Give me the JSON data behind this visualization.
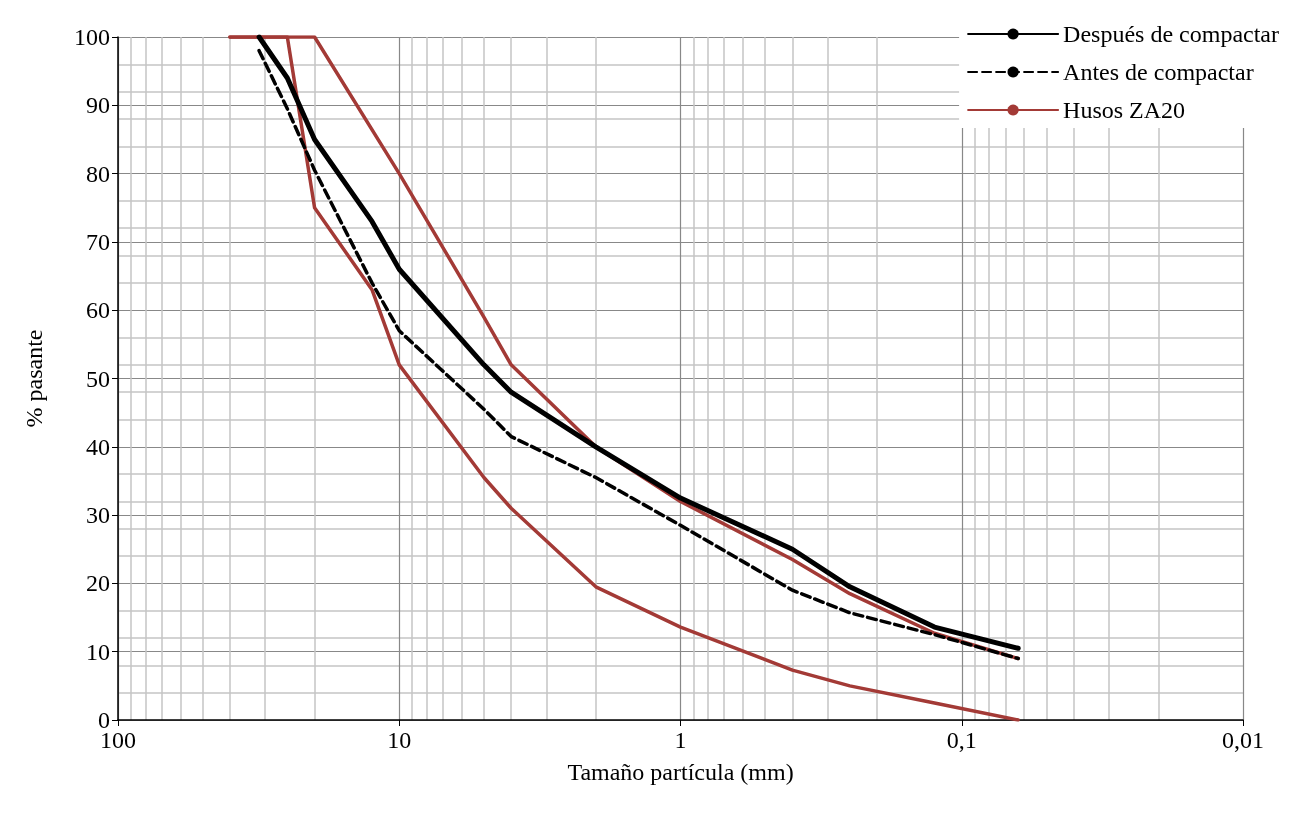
{
  "chart_data": {
    "type": "line",
    "xlabel": "Tamaño partícula (mm)",
    "ylabel": "% pasante",
    "log": "x",
    "grid": true,
    "legend": "top right",
    "xlim": [
      100,
      0.01
    ],
    "xticks": [
      {
        "value": 100,
        "label": "100"
      },
      {
        "value": 10,
        "label": "10"
      },
      {
        "value": 1,
        "label": "1"
      },
      {
        "value": 0.1,
        "label": "0,1"
      },
      {
        "value": 0.01,
        "label": "0,01"
      }
    ],
    "ylim": [
      0,
      100
    ],
    "yticks": [
      0,
      10,
      20,
      30,
      40,
      50,
      60,
      70,
      80,
      90,
      100
    ],
    "series": [
      {
        "name": "Después de compactar",
        "color": "#000000",
        "line_style": "solid",
        "x": [
          31.5,
          25,
          20,
          12.5,
          10,
          5,
          4,
          2,
          1,
          0.4,
          0.25,
          0.125,
          0.063
        ],
        "values": [
          100,
          94,
          85,
          73,
          66,
          52,
          48,
          40,
          32.5,
          25,
          19.5,
          13.6,
          10.5
        ]
      },
      {
        "name": "Antes de compactar",
        "color": "#000000",
        "line_style": "dashed",
        "x": [
          31.5,
          25,
          20,
          12.5,
          10,
          5,
          4,
          2,
          1,
          0.4,
          0.25,
          0.125,
          0.063
        ],
        "values": [
          98,
          89.5,
          80.5,
          64,
          57,
          45.5,
          41.5,
          35.5,
          28.5,
          19,
          15.7,
          12.5,
          9
        ]
      },
      {
        "name": "Husos ZA20",
        "color": "#a33a36",
        "line_style": "solid",
        "x": [
          40,
          20,
          10,
          5,
          4,
          2,
          1,
          0.4,
          0.25,
          0.125,
          0.063
        ],
        "values": [
          100,
          100,
          80,
          59,
          52,
          40,
          32,
          23.5,
          18.5,
          12.7,
          9
        ]
      },
      {
        "color": "#a33a36",
        "line_style": "solid",
        "x": [
          40,
          25,
          20,
          12.5,
          10,
          5,
          4,
          2,
          1,
          0.4,
          0.25,
          0.125,
          0.063
        ],
        "values": [
          100,
          100,
          75,
          63,
          52,
          35.5,
          31,
          19.5,
          13.6,
          7.3,
          5,
          2.5,
          0
        ]
      }
    ]
  }
}
